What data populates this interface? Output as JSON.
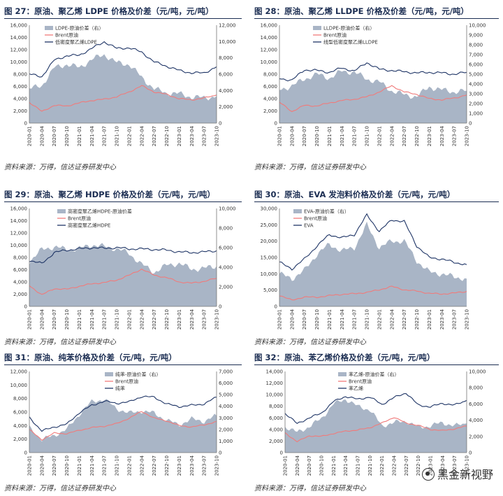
{
  "colors": {
    "area": "#a9b5c6",
    "brent": "#f07b7b",
    "product": "#1f3566",
    "title": "#1b2d52"
  },
  "watermark": "黑金新视野",
  "panels": [
    {
      "title": "图 27：原油、聚乙烯 LDPE 价格及价差（元/吨，元/吨）",
      "source": "资料来源：万得，信达证券研发中心",
      "legend": [
        "LDPE-原油价差（右）",
        "Brent原油",
        "低密度聚乙烯LDPE"
      ],
      "chart_data": {
        "type": "line",
        "left_axis": {
          "min": 0,
          "max": 16000,
          "ticks": [
            "0",
            "2,000",
            "4,000",
            "6,000",
            "8,000",
            "10,000",
            "12,000",
            "14,000",
            "16,000"
          ]
        },
        "right_axis": {
          "min": 0,
          "max": 12000,
          "ticks": [
            "0",
            "2,000",
            "4,000",
            "6,000",
            "8,000",
            "10,000",
            "12,000"
          ]
        },
        "x_ticks": [
          "2020-01",
          "2020-04",
          "2020-07",
          "2020-10",
          "2021-01",
          "2021-04",
          "2021-07",
          "2021-10",
          "2022-01",
          "2022-04",
          "2022-07",
          "2022-10",
          "2023-01",
          "2023-04",
          "2023-07",
          "2023-10"
        ],
        "series": [
          {
            "name": "LDPE-原油价差（右）",
            "axis": "right",
            "kind": "area",
            "values": [
              4200,
              4600,
              6800,
              7200,
              6800,
              7800,
              8400,
              7400,
              7200,
              5600,
              4200,
              3700,
              3600,
              3200,
              3100,
              3300
            ]
          },
          {
            "name": "Brent原油",
            "axis": "left",
            "kind": "line",
            "values": [
              3400,
              1900,
              2900,
              2800,
              3300,
              3700,
              3900,
              4300,
              5100,
              6100,
              5100,
              4700,
              4000,
              3800,
              4100,
              4600
            ]
          },
          {
            "name": "低密度聚乙烯LDPE",
            "axis": "left",
            "kind": "line",
            "values": [
              8000,
              7600,
              10300,
              11000,
              11100,
              12200,
              13300,
              12200,
              12300,
              11600,
              10000,
              9300,
              8600,
              8200,
              8200,
              9200
            ]
          }
        ]
      }
    },
    {
      "title": "图 28：原油、聚乙烯 LLDPE 价格及价差（元/吨，元/吨）",
      "source": "资料来源：万得，信达证券研发中心",
      "legend": [
        "LLDPE-原油价差（右）",
        "Brent原油",
        "线型低密度聚乙烯LLDPE"
      ],
      "chart_data": {
        "type": "line",
        "left_axis": {
          "min": 0,
          "max": 16000,
          "ticks": [
            "0",
            "2,000",
            "4,000",
            "6,000",
            "8,000",
            "10,000",
            "12,000",
            "14,000",
            "16,000"
          ]
        },
        "right_axis": {
          "min": 0,
          "max": 10000,
          "ticks": [
            "0",
            "1,000",
            "2,000",
            "3,000",
            "4,000",
            "5,000",
            "6,000",
            "7,000",
            "8,000",
            "9,000",
            "10,000"
          ]
        },
        "x_ticks": [
          "2020-01",
          "2020-04",
          "2020-07",
          "2020-10",
          "2021-01",
          "2021-04",
          "2021-07",
          "2021-10",
          "2022-01",
          "2022-04",
          "2022-07",
          "2022-10",
          "2023-01",
          "2023-04",
          "2023-07",
          "2023-10"
        ],
        "series": [
          {
            "name": "LLDPE-原油价差（右）",
            "axis": "right",
            "kind": "area",
            "values": [
              3400,
              3800,
              4500,
              5000,
              4600,
              5300,
              5200,
              4500,
              4200,
              3300,
              2900,
              2700,
              3700,
              3400,
              3200,
              3300
            ]
          },
          {
            "name": "Brent原油",
            "axis": "left",
            "kind": "line",
            "values": [
              3400,
              1900,
              2900,
              2800,
              3300,
              3700,
              3900,
              4300,
              5100,
              6100,
              5100,
              4700,
              4000,
              3800,
              4100,
              4600
            ]
          },
          {
            "name": "线型低密度聚乙烯LLDPE",
            "axis": "left",
            "kind": "line",
            "values": [
              7300,
              7000,
              8700,
              8600,
              8300,
              9000,
              8500,
              9900,
              8800,
              8600,
              8400,
              8200,
              8300,
              8200,
              8000,
              8300
            ]
          }
        ]
      }
    },
    {
      "title": "图 29：原油、聚乙烯 HDPE 价格及价差（元/吨，元/吨）",
      "source": "资料来源：万得，信达证券研发中心",
      "legend": [
        "高密度聚乙烯HDPE-原油价差",
        "Brent原油",
        "高密度聚乙烯HDPE"
      ],
      "chart_data": {
        "type": "line",
        "left_axis": {
          "min": 0,
          "max": 16000,
          "ticks": [
            "0",
            "2,000",
            "4,000",
            "6,000",
            "8,000",
            "10,000",
            "12,000",
            "14,000",
            "16,000"
          ]
        },
        "right_axis": {
          "min": 0,
          "max": 10000,
          "ticks": [
            "0",
            "2,000",
            "4,000",
            "6,000",
            "8,000",
            "10,000"
          ]
        },
        "x_ticks": [
          "2020-01",
          "2020-04",
          "2020-07",
          "2020-10",
          "2021-01",
          "2021-04",
          "2021-07",
          "2021-10",
          "2022-01",
          "2022-04",
          "2022-07",
          "2022-10",
          "2023-01",
          "2023-04",
          "2023-07",
          "2023-10"
        ],
        "series": [
          {
            "name": "高密度聚乙烯HDPE-原油价差",
            "axis": "right",
            "kind": "area",
            "values": [
              4600,
              5800,
              6100,
              5800,
              5900,
              6300,
              6100,
              5900,
              5400,
              4300,
              3500,
              4200,
              4400,
              3800,
              3900,
              4100
            ]
          },
          {
            "name": "Brent原油",
            "axis": "left",
            "kind": "line",
            "values": [
              3400,
              1900,
              2900,
              2800,
              3300,
              3700,
              3900,
              4300,
              5100,
              6100,
              5100,
              4700,
              4000,
              3800,
              4100,
              4600
            ]
          },
          {
            "name": "高密度聚乙烯HDPE",
            "axis": "left",
            "kind": "line",
            "values": [
              7500,
              7000,
              8800,
              9200,
              9400,
              9600,
              9500,
              9600,
              9400,
              9400,
              9300,
              9200,
              8900,
              8800,
              8900,
              9100
            ]
          }
        ]
      }
    },
    {
      "title": "图 30：原油、EVA 发泡料价格及价差（元/吨，元/吨）",
      "source": "资料来源：万得，信达证券研发中心",
      "legend": [
        "EVA-原油价差（右）",
        "Brent原油",
        "EVA"
      ],
      "chart_data": {
        "type": "line",
        "left_axis": {
          "min": 0,
          "max": 30000,
          "ticks": [
            "0",
            "5,000",
            "10,000",
            "15,000",
            "20,000",
            "25,000",
            "30,000"
          ]
        },
        "right_axis": null,
        "x_ticks": [
          "2020-01",
          "2020-04",
          "2020-07",
          "2020-10",
          "2021-01",
          "2021-04",
          "2021-07",
          "2021-10",
          "2022-01",
          "2022-04",
          "2022-07",
          "2022-10",
          "2023-01",
          "2023-04",
          "2023-07",
          "2023-10"
        ],
        "series": [
          {
            "name": "EVA-原油价差（右）",
            "axis": "left",
            "kind": "area",
            "values": [
              10000,
              8500,
              11000,
              16000,
              19000,
              17000,
              18000,
              25000,
              18000,
              20000,
              20000,
              14000,
              10500,
              10000,
              9000,
              8500
            ]
          },
          {
            "name": "Brent原油",
            "axis": "left",
            "kind": "line",
            "values": [
              3400,
              1900,
              2900,
              2800,
              3300,
              3700,
              3900,
              4300,
              5100,
              6100,
              5100,
              4700,
              4000,
              3800,
              4100,
              4600
            ]
          },
          {
            "name": "EVA",
            "axis": "left",
            "kind": "line",
            "values": [
              13500,
              11500,
              14500,
              18500,
              22000,
              21000,
              22000,
              28000,
              23000,
              26500,
              26000,
              18500,
              15000,
              14500,
              13500,
              12800
            ]
          }
        ]
      }
    },
    {
      "title": "图 31：原油、纯苯价格及价差（元/吨，元/吨）",
      "source": "资料来源：万得，信达证券研发中心",
      "legend": [
        "纯苯-原油价差（右）",
        "Brent原油",
        "纯苯"
      ],
      "chart_data": {
        "type": "line",
        "left_axis": {
          "min": 0,
          "max": 12000,
          "ticks": [
            "0",
            "2,000",
            "4,000",
            "6,000",
            "8,000",
            "10,000",
            "12,000"
          ]
        },
        "right_axis": {
          "min": 0,
          "max": 7000,
          "ticks": [
            "0",
            "1,000",
            "2,000",
            "3,000",
            "4,000",
            "5,000",
            "6,000",
            "7,000"
          ]
        },
        "x_ticks": [
          "2020-01",
          "2020-04",
          "2020-07",
          "2020-10",
          "2021-01",
          "2021-04",
          "2021-07",
          "2021-10",
          "2022-01",
          "2022-04",
          "2022-07",
          "2022-10",
          "2023-01",
          "2023-04",
          "2023-07",
          "2023-10"
        ],
        "series": [
          {
            "name": "纯苯-原油价差（右）",
            "axis": "right",
            "kind": "area",
            "values": [
              2200,
              1100,
              1500,
              2000,
              3300,
              4400,
              4600,
              3800,
              3400,
              3600,
              3400,
              2800,
              2400,
              2900,
              2700,
              3200
            ]
          },
          {
            "name": "Brent原油",
            "axis": "left",
            "kind": "line",
            "values": [
              3400,
              1900,
              2900,
              2800,
              3300,
              3700,
              3900,
              4300,
              5100,
              6100,
              5100,
              4700,
              4000,
              3800,
              4100,
              4600
            ]
          },
          {
            "name": "纯苯",
            "axis": "left",
            "kind": "line",
            "values": [
              5200,
              3200,
              3800,
              4200,
              5900,
              7000,
              7600,
              7300,
              7500,
              8300,
              8200,
              7200,
              6800,
              7000,
              7200,
              8200
            ]
          }
        ]
      }
    },
    {
      "title": "图 32：原油、苯乙烯价格及价差（元/吨，元/吨）",
      "source": "资料来源：万得，信达证券研发中心",
      "legend": [
        "苯乙烯-原油价差（右）",
        "Brent原油",
        "苯乙烯"
      ],
      "chart_data": {
        "type": "line",
        "left_axis": {
          "min": 0,
          "max": 14000,
          "ticks": [
            "0",
            "2,000",
            "4,000",
            "6,000",
            "8,000",
            "10,000",
            "12,000",
            "14,000"
          ]
        },
        "right_axis": {
          "min": 0,
          "max": 10000,
          "ticks": [
            "0",
            "2,000",
            "4,000",
            "6,000",
            "8,000",
            "10,000"
          ]
        },
        "x_ticks": [
          "2020-01",
          "2020-04",
          "2020-07",
          "2020-10",
          "2021-01",
          "2021-04",
          "2021-07",
          "2021-10",
          "2022-01",
          "2022-04",
          "2022-07",
          "2022-10",
          "2023-01",
          "2023-04",
          "2023-07",
          "2023-10"
        ],
        "series": [
          {
            "name": "苯乙烯-原油价差（右）",
            "axis": "right",
            "kind": "area",
            "values": [
              3200,
              2500,
              3200,
              4200,
              6000,
              6600,
              5700,
              5300,
              3300,
              3700,
              3900,
              3100,
              3300,
              3700,
              3300,
              3600
            ]
          },
          {
            "name": "Brent原油",
            "axis": "left",
            "kind": "line",
            "values": [
              3400,
              1900,
              2900,
              2800,
              3300,
              3700,
              3900,
              4300,
              5100,
              6100,
              5100,
              4700,
              4000,
              3800,
              4100,
              4600
            ]
          },
          {
            "name": "苯乙烯",
            "axis": "left",
            "kind": "line",
            "values": [
              6800,
              5000,
              6000,
              6800,
              8800,
              9700,
              9200,
              9600,
              8300,
              9500,
              10300,
              8200,
              7900,
              8500,
              8200,
              9000
            ]
          }
        ]
      }
    }
  ]
}
